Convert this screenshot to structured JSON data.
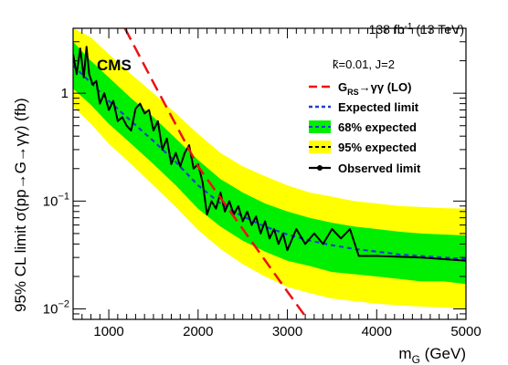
{
  "chart_data": {
    "type": "line",
    "experiment": "CMS",
    "lumi_label": {
      "main": "138 fb",
      "sup": "-1",
      "rest": " (13 TeV)"
    },
    "parameter_label": "k̃=0.01,  J=2",
    "xlabel": {
      "main": "m",
      "sub": "G",
      "rest": " (GeV)"
    },
    "ylabel": "95% CL limit σ(pp→G→γγ) (fb)",
    "xlim": [
      600,
      5000
    ],
    "ylim": [
      0.008,
      4.0
    ],
    "yscale": "log",
    "x_ticks": [
      1000,
      2000,
      3000,
      4000,
      5000
    ],
    "x_tick_labels": [
      "1000",
      "2000",
      "3000",
      "4000",
      "5000"
    ],
    "y_ticks": [
      {
        "value": 0.01,
        "base": "10",
        "exp": "−2"
      },
      {
        "value": 0.1,
        "base": "10",
        "exp": "−1"
      },
      {
        "value": 1,
        "base": "1",
        "exp": ""
      }
    ],
    "legend_position": "top-right",
    "colors": {
      "band95": "#ffff00",
      "band68": "#00ee00",
      "expected": "#1e3fcf",
      "observed": "#000000",
      "theory": "#ee1111"
    },
    "series": [
      {
        "name": "G_RS→γγ (LO)",
        "legend": {
          "main": "G",
          "sub": "RS",
          "rest": "→γγ (LO)"
        },
        "style": "dashed-red",
        "x": [
          1180,
          1500,
          2000,
          2500,
          3000,
          3230
        ],
        "y": [
          4.0,
          1.25,
          0.21,
          0.055,
          0.0145,
          0.0079
        ]
      },
      {
        "name": "Expected limit",
        "legend": {
          "main": "Expected limit"
        },
        "style": "dashed-blue",
        "x": [
          600,
          800,
          1000,
          1250,
          1500,
          1750,
          2000,
          2250,
          2500,
          2750,
          3000,
          3250,
          3500,
          3750,
          4000,
          4250,
          4500,
          4750,
          5000
        ],
        "y": [
          1.8,
          1.25,
          0.85,
          0.55,
          0.36,
          0.23,
          0.14,
          0.095,
          0.072,
          0.058,
          0.049,
          0.043,
          0.039,
          0.036,
          0.034,
          0.032,
          0.031,
          0.03,
          0.029
        ]
      },
      {
        "name": "68% expected",
        "legend": {
          "main": "68% expected"
        },
        "style": "band-68",
        "x": [
          600,
          800,
          1000,
          1250,
          1500,
          1750,
          2000,
          2250,
          2500,
          2750,
          3000,
          3250,
          3500,
          3750,
          4000,
          4250,
          4500,
          4750,
          5000
        ],
        "lower": [
          1.1,
          0.78,
          0.52,
          0.34,
          0.22,
          0.14,
          0.085,
          0.058,
          0.043,
          0.034,
          0.028,
          0.025,
          0.022,
          0.021,
          0.02,
          0.019,
          0.018,
          0.018,
          0.017
        ],
        "upper": [
          3.0,
          2.0,
          1.4,
          0.9,
          0.6,
          0.38,
          0.24,
          0.16,
          0.12,
          0.095,
          0.08,
          0.07,
          0.063,
          0.058,
          0.055,
          0.052,
          0.05,
          0.049,
          0.048
        ]
      },
      {
        "name": "95% expected",
        "legend": {
          "main": "95% expected"
        },
        "style": "band-95",
        "x": [
          600,
          800,
          1000,
          1250,
          1500,
          1750,
          2000,
          2250,
          2500,
          2750,
          3000,
          3250,
          3500,
          3750,
          4000,
          4250,
          4500,
          4750,
          5000
        ],
        "lower": [
          0.75,
          0.52,
          0.34,
          0.22,
          0.14,
          0.088,
          0.054,
          0.036,
          0.026,
          0.02,
          0.016,
          0.014,
          0.0125,
          0.0118,
          0.0112,
          0.0108,
          0.0105,
          0.0103,
          0.0101
        ],
        "upper": [
          4.0,
          3.3,
          2.3,
          1.5,
          1.0,
          0.65,
          0.42,
          0.28,
          0.21,
          0.17,
          0.14,
          0.12,
          0.11,
          0.1,
          0.095,
          0.09,
          0.088,
          0.086,
          0.085
        ]
      },
      {
        "name": "Observed limit",
        "legend": {
          "main": "Observed limit"
        },
        "style": "solid-black",
        "x": [
          600,
          640,
          680,
          720,
          750,
          780,
          820,
          860,
          900,
          950,
          1000,
          1050,
          1100,
          1150,
          1200,
          1250,
          1300,
          1350,
          1400,
          1450,
          1500,
          1550,
          1600,
          1650,
          1700,
          1750,
          1800,
          1850,
          1900,
          1950,
          2000,
          2050,
          2100,
          2150,
          2200,
          2250,
          2300,
          2350,
          2400,
          2450,
          2500,
          2550,
          2600,
          2650,
          2700,
          2750,
          2800,
          2850,
          2900,
          2950,
          3000,
          3100,
          3200,
          3300,
          3400,
          3500,
          3600,
          3700,
          3800,
          4000,
          4500,
          5000
        ],
        "y": [
          2.3,
          1.5,
          2.6,
          1.4,
          2.7,
          1.5,
          1.2,
          1.3,
          0.8,
          1.0,
          0.7,
          0.85,
          0.55,
          0.6,
          0.5,
          0.45,
          0.72,
          0.8,
          0.65,
          0.7,
          0.45,
          0.55,
          0.3,
          0.38,
          0.22,
          0.28,
          0.21,
          0.28,
          0.33,
          0.2,
          0.22,
          0.15,
          0.075,
          0.1,
          0.085,
          0.12,
          0.08,
          0.1,
          0.075,
          0.09,
          0.065,
          0.08,
          0.06,
          0.072,
          0.05,
          0.065,
          0.045,
          0.055,
          0.04,
          0.05,
          0.035,
          0.055,
          0.04,
          0.05,
          0.04,
          0.055,
          0.045,
          0.055,
          0.031,
          0.031,
          0.03,
          0.028
        ]
      }
    ]
  }
}
